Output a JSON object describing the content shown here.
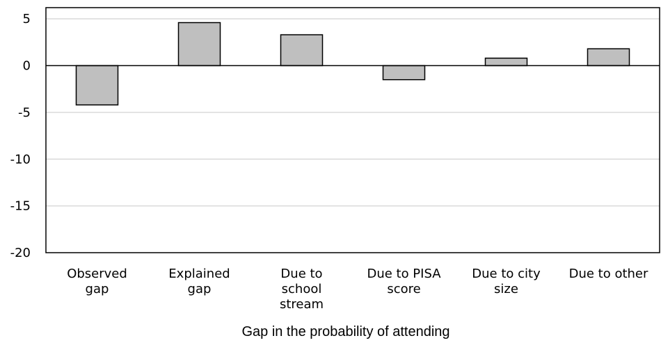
{
  "chart_data": {
    "type": "bar",
    "categories": [
      [
        "Observed",
        "gap"
      ],
      [
        "Explained",
        "gap"
      ],
      [
        "Due to",
        "school",
        "stream"
      ],
      [
        "Due to PISA",
        "score"
      ],
      [
        "Due to city",
        "size"
      ],
      [
        "Due to other"
      ]
    ],
    "values": [
      -4.2,
      4.6,
      3.3,
      -1.5,
      0.8,
      1.8
    ],
    "title": "",
    "xlabel": "Gap in the probability of attending",
    "ylabel": "",
    "ylim": [
      -20,
      6.2
    ],
    "yticks": [
      5,
      0,
      -5,
      -10,
      -15,
      -20
    ],
    "grid": true,
    "legend": "none",
    "colors": {
      "bar_fill": "#bfbfbf",
      "bar_stroke": "#000000",
      "grid": "#d9d9d9",
      "axis": "#000000"
    }
  }
}
